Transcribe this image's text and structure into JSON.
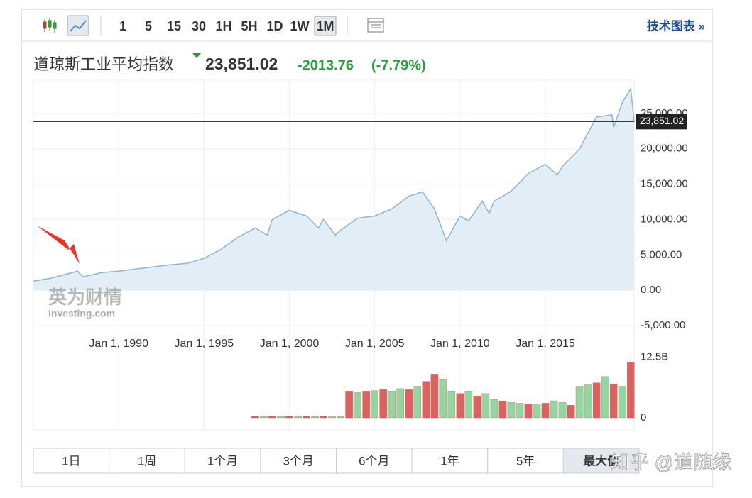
{
  "toolbar": {
    "intervals": [
      "1",
      "5",
      "15",
      "30",
      "1H",
      "5H",
      "1D",
      "1W",
      "1M"
    ],
    "link": "技术图表 »"
  },
  "header": {
    "name": "道琼斯工业平均指数",
    "price": "23,851.02",
    "change": "-2013.76",
    "change_pct": "(-7.79%)"
  },
  "chart_data": [
    {
      "type": "area",
      "color": "#8fb3d3",
      "fill": "#e3edf5",
      "grid": true,
      "last_value": 23851.02,
      "xlim": [
        1985,
        2020.2
      ],
      "ylim": [
        -6100,
        29700
      ],
      "xticks": [
        {
          "value": 1990,
          "label": "Jan 1, 1990"
        },
        {
          "value": 1995,
          "label": "Jan 1, 1995"
        },
        {
          "value": 2000,
          "label": "Jan 1, 2000"
        },
        {
          "value": 2005,
          "label": "Jan 1, 2005"
        },
        {
          "value": 2010,
          "label": "Jan 1, 2010"
        },
        {
          "value": 2015,
          "label": "Jan 1, 2015"
        }
      ],
      "yticks": [
        {
          "value": 25000,
          "label": "25,000.00"
        },
        {
          "value": 20000,
          "label": "20,000.00"
        },
        {
          "value": 15000,
          "label": "15,000.00"
        },
        {
          "value": 10000,
          "label": "10,000.00"
        },
        {
          "value": 5000,
          "label": "5,000.00"
        },
        {
          "value": 0,
          "label": "0.00"
        },
        {
          "value": -5000,
          "label": "-5,000.00"
        }
      ],
      "x": [
        1985,
        1986,
        1987.6,
        1987.9,
        1989,
        1990,
        1991,
        1992,
        1993,
        1994,
        1995,
        1996,
        1997,
        1998,
        1998.7,
        1999,
        2000,
        2001,
        2001.7,
        2002,
        2002.7,
        2003,
        2004,
        2005,
        2006,
        2007,
        2007.8,
        2008.5,
        2009.2,
        2010,
        2010.5,
        2011.3,
        2011.7,
        2012,
        2013,
        2014,
        2015,
        2015.7,
        2016,
        2017,
        2018,
        2018.9,
        2019,
        2019.5,
        2020,
        2020.2
      ],
      "y": [
        1300,
        1700,
        2700,
        1900,
        2500,
        2700,
        3000,
        3300,
        3600,
        3800,
        4500,
        5800,
        7500,
        8800,
        7800,
        10000,
        11300,
        10500,
        8800,
        10000,
        7800,
        8500,
        10200,
        10500,
        11500,
        13300,
        13900,
        11500,
        7000,
        10500,
        9800,
        12600,
        10900,
        12600,
        14000,
        16500,
        17800,
        16300,
        17500,
        20000,
        24500,
        24800,
        23000,
        26500,
        28500,
        23851.02
      ]
    },
    {
      "type": "bar",
      "xlim": [
        1985,
        2020.2
      ],
      "ylim": [
        0,
        13000000000
      ],
      "yticks": [
        {
          "value": 12500000000,
          "label": "12.5B"
        },
        0
      ],
      "x": [
        1998,
        1998.5,
        1999,
        1999.5,
        2000,
        2000.5,
        2001,
        2001.5,
        2002,
        2002.5,
        2003,
        2003.5,
        2004,
        2004.5,
        2005,
        2005.5,
        2006,
        2006.5,
        2007,
        2007.5,
        2008,
        2008.5,
        2009,
        2009.5,
        2010,
        2010.5,
        2011,
        2011.5,
        2012,
        2012.5,
        2013,
        2013.5,
        2014,
        2014.5,
        2015,
        2015.5,
        2016,
        2016.5,
        2017,
        2017.5,
        2018,
        2018.5,
        2019,
        2019.5,
        2020
      ],
      "values": [
        300000000,
        300000000,
        300000000,
        300000000,
        300000000,
        300000000,
        300000000,
        300000000,
        300000000,
        300000000,
        300000000,
        5500000000,
        5200000000,
        5500000000,
        5600000000,
        5800000000,
        5500000000,
        6000000000,
        5800000000,
        6500000000,
        7500000000,
        9000000000,
        8000000000,
        5500000000,
        5000000000,
        5500000000,
        4500000000,
        5000000000,
        3800000000,
        3500000000,
        3200000000,
        3000000000,
        2800000000,
        2800000000,
        3000000000,
        3500000000,
        3200000000,
        2600000000,
        6500000000,
        6800000000,
        7200000000,
        8500000000,
        7000000000,
        6500000000,
        11500000000
      ],
      "colors": [
        "#d9645f",
        "#93d6a0",
        "#d9645f",
        "#93d6a0",
        "#d9645f",
        "#93d6a0",
        "#d9645f",
        "#93d6a0",
        "#d9645f",
        "#93d6a0",
        "#93d6a0",
        "#d9645f",
        "#93d6a0",
        "#d9645f",
        "#93d6a0",
        "#d9645f",
        "#93d6a0",
        "#93d6a0",
        "#d9645f",
        "#93d6a0",
        "#d9645f",
        "#d9645f",
        "#93d6a0",
        "#93d6a0",
        "#d9645f",
        "#93d6a0",
        "#d9645f",
        "#93d6a0",
        "#93d6a0",
        "#d9645f",
        "#93d6a0",
        "#93d6a0",
        "#d9645f",
        "#93d6a0",
        "#d9645f",
        "#93d6a0",
        "#93d6a0",
        "#d9645f",
        "#93d6a0",
        "#93d6a0",
        "#d9645f",
        "#93d6a0",
        "#d9645f",
        "#93d6a0",
        "#d9645f"
      ]
    }
  ],
  "tabs": [
    "1日",
    "1周",
    "1个月",
    "3个月",
    "6个月",
    "1年",
    "5年",
    "最大值"
  ],
  "logo": {
    "cn": "英为财情",
    "en": "Investing.com"
  },
  "watermark": "知乎 @道随缘"
}
